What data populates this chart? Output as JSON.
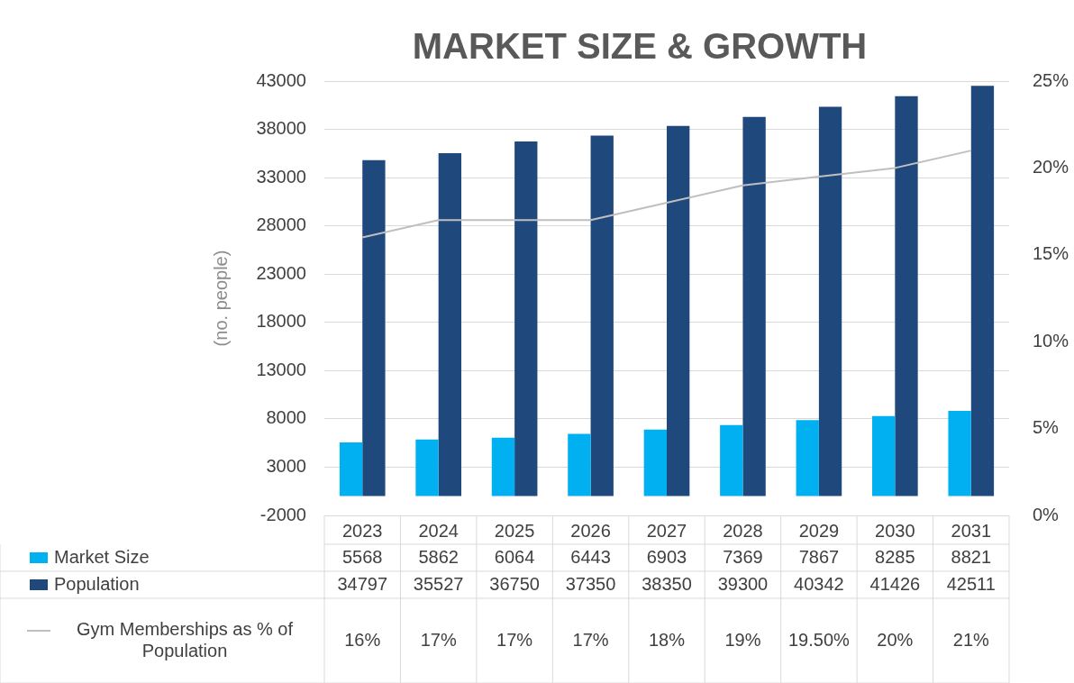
{
  "chart_data": {
    "type": "bar",
    "title": "MARKET SIZE & GROWTH",
    "ylabel": "(no. people)",
    "categories": [
      "2023",
      "2024",
      "2025",
      "2026",
      "2027",
      "2028",
      "2029",
      "2030",
      "2031"
    ],
    "series": [
      {
        "name": "Market Size",
        "color": "#00b0f0",
        "values": [
          5568,
          5862,
          6064,
          6443,
          6903,
          7369,
          7867,
          8285,
          8821
        ]
      },
      {
        "name": "Population",
        "color": "#1f497d",
        "values": [
          34797,
          35527,
          36750,
          37350,
          38350,
          39300,
          40342,
          41426,
          42511
        ]
      },
      {
        "name": "Gym Memberships as % of Population",
        "type": "line",
        "axis": "y2",
        "color": "#bfbfbf",
        "marker": "none",
        "values": [
          16,
          17,
          17,
          17,
          18,
          19,
          19.5,
          20,
          21
        ],
        "value_labels": [
          "16%",
          "17%",
          "17%",
          "17%",
          "18%",
          "19%",
          "19.50%",
          "20%",
          "21%"
        ]
      }
    ],
    "ylim": [
      -2000,
      43000
    ],
    "yticks": [
      -2000,
      3000,
      8000,
      13000,
      18000,
      23000,
      28000,
      33000,
      38000,
      43000
    ],
    "y2lim": [
      0,
      25
    ],
    "y2ticks": [
      {
        "value": 0,
        "label": "0%"
      },
      {
        "value": 5,
        "label": "5%"
      },
      {
        "value": 10,
        "label": "10%"
      },
      {
        "value": 15,
        "label": "15%"
      },
      {
        "value": 20,
        "label": "20%"
      },
      {
        "value": 25,
        "label": "25%"
      }
    ],
    "grid": "y",
    "legend": "bottom",
    "data_labels": true
  }
}
